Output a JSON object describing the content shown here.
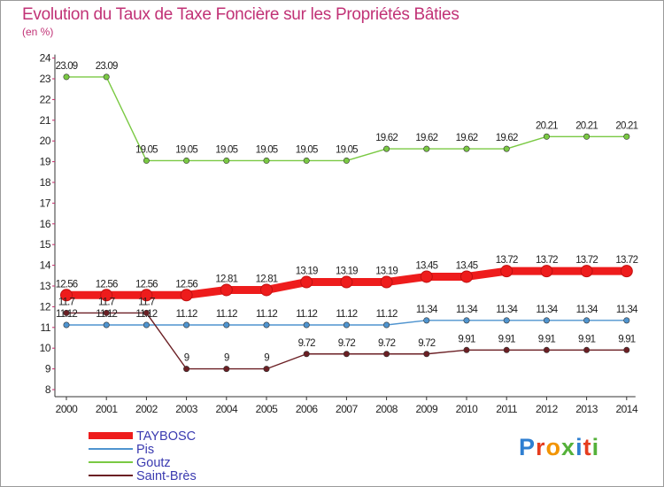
{
  "header": {
    "title": "Evolution du Taux de Taxe Foncière sur les Propriétés Bâties",
    "unit_note": "(en %)"
  },
  "logo": {
    "letters": [
      "P",
      "r",
      "o",
      "x",
      "i",
      "t",
      "i"
    ],
    "colors": [
      "#2f7fd1",
      "#e63d1f",
      "#f29400",
      "#55b13a",
      "#2f7fd1",
      "#e63d1f",
      "#55b13a"
    ]
  },
  "colors": {
    "title": "#c13276",
    "axis": "#333333",
    "tick_text": "#222222",
    "legend_text": "#3a3ab0",
    "grid_tick": "#c62a6a"
  },
  "chart_data": {
    "type": "line",
    "title": "Evolution du Taux de Taxe Foncière sur les Propriétés Bâties",
    "ylabel": "(en %)",
    "xlabel": "",
    "x": [
      "2000",
      "2001",
      "2002",
      "2003",
      "2004",
      "2005",
      "2006",
      "2007",
      "2008",
      "2009",
      "2010",
      "2011",
      "2012",
      "2013",
      "2014"
    ],
    "ylim": [
      8,
      24
    ],
    "yticks": [
      8,
      9,
      10,
      11,
      12,
      13,
      14,
      15,
      16,
      17,
      18,
      19,
      20,
      21,
      22,
      23,
      24
    ],
    "legend_position": "bottom-left",
    "series": [
      {
        "name": "TAYBOSC",
        "color": "#ee1c1c",
        "highlight": true,
        "values": [
          12.56,
          12.56,
          12.56,
          12.56,
          12.81,
          12.81,
          13.19,
          13.19,
          13.19,
          13.45,
          13.45,
          13.72,
          13.72,
          13.72,
          13.72
        ],
        "labels": [
          "12.56",
          "12.56",
          "12.56",
          "12.56",
          "12.81",
          "12.81",
          "13.19",
          "13.19",
          "13.19",
          "13.45",
          "13.45",
          "13.72",
          "13.72",
          "13.72",
          "13.72"
        ]
      },
      {
        "name": "Pis",
        "color": "#4f94cf",
        "highlight": false,
        "values": [
          11.12,
          11.12,
          11.12,
          11.12,
          11.12,
          11.12,
          11.12,
          11.12,
          11.12,
          11.34,
          11.34,
          11.34,
          11.34,
          11.34,
          11.34
        ],
        "labels": [
          "11.12",
          "11.12",
          "11.12",
          "11.12",
          "11.12",
          "11.12",
          "11.12",
          "11.12",
          "11.12",
          "11.34",
          "11.34",
          "11.34",
          "11.34",
          "11.34",
          "11.34"
        ]
      },
      {
        "name": "Goutz",
        "color": "#7ac943",
        "highlight": false,
        "values": [
          23.09,
          23.09,
          19.05,
          19.05,
          19.05,
          19.05,
          19.05,
          19.05,
          19.62,
          19.62,
          19.62,
          19.62,
          20.21,
          20.21,
          20.21
        ],
        "labels": [
          "23.09",
          "23.09",
          "19.05",
          "19.05",
          "19.05",
          "19.05",
          "19.05",
          "19.05",
          "19.62",
          "19.62",
          "19.62",
          "19.62",
          "20.21",
          "20.21",
          "20.21"
        ]
      },
      {
        "name": "Saint-Brès",
        "color": "#6b1f24",
        "highlight": false,
        "values": [
          11.7,
          11.7,
          11.7,
          9,
          9,
          9,
          9.72,
          9.72,
          9.72,
          9.72,
          9.91,
          9.91,
          9.91,
          9.91,
          9.91
        ],
        "labels": [
          "11.7",
          "11.7",
          "11.7",
          "9",
          "9",
          "9",
          "9.72",
          "9.72",
          "9.72",
          "9.72",
          "9.91",
          "9.91",
          "9.91",
          "9.91",
          "9.91"
        ]
      }
    ]
  }
}
